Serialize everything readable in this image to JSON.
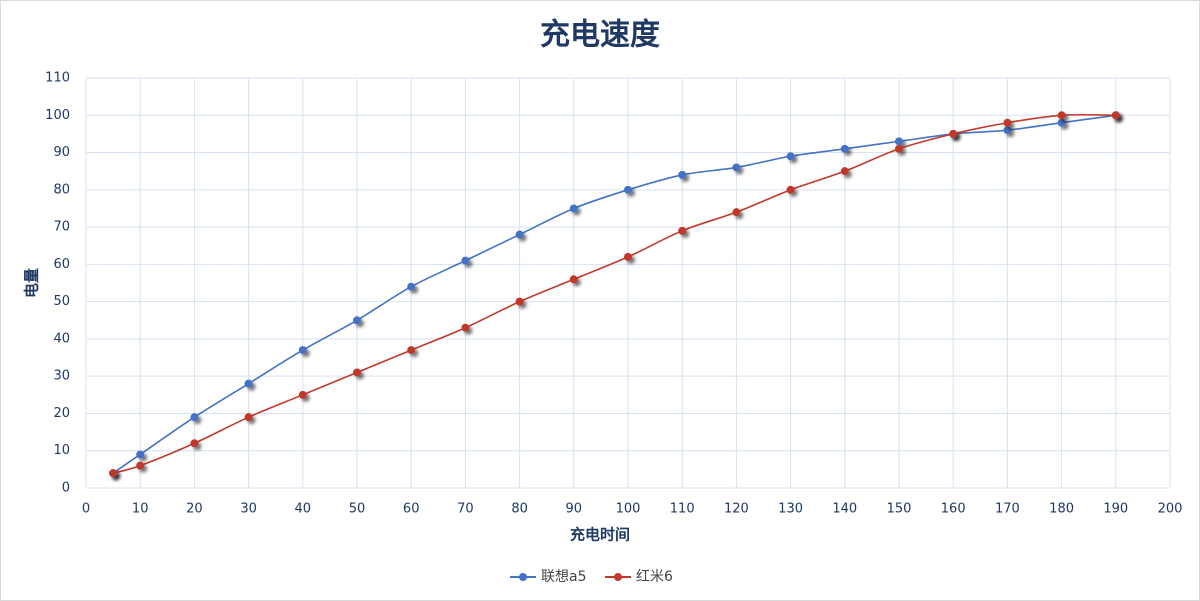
{
  "chart_data": {
    "type": "line",
    "title": "充电速度",
    "x_label": "充电时间",
    "y_label": "电量",
    "x": [
      5,
      10,
      20,
      30,
      40,
      50,
      60,
      70,
      80,
      90,
      100,
      110,
      120,
      130,
      140,
      150,
      160,
      170,
      180,
      190
    ],
    "series": [
      {
        "name": "联想a5",
        "color": "#4472c4",
        "values": [
          4,
          9,
          19,
          28,
          37,
          45,
          54,
          61,
          68,
          75,
          80,
          84,
          86,
          89,
          91,
          93,
          95,
          96,
          98,
          100
        ]
      },
      {
        "name": "红米6",
        "color": "#c0392b",
        "values": [
          4,
          6,
          12,
          19,
          25,
          31,
          37,
          43,
          50,
          56,
          62,
          69,
          74,
          80,
          85,
          91,
          95,
          98,
          100,
          100
        ]
      }
    ],
    "xlim": [
      0,
      200
    ],
    "xticks": [
      0,
      10,
      20,
      30,
      40,
      50,
      60,
      70,
      80,
      90,
      100,
      110,
      120,
      130,
      140,
      150,
      160,
      170,
      180,
      190,
      200
    ],
    "ylim": [
      0,
      110
    ],
    "yticks": [
      0,
      10,
      20,
      30,
      40,
      50,
      60,
      70,
      80,
      90,
      100,
      110
    ],
    "grid": true,
    "smooth": true,
    "legend": "bottom"
  }
}
